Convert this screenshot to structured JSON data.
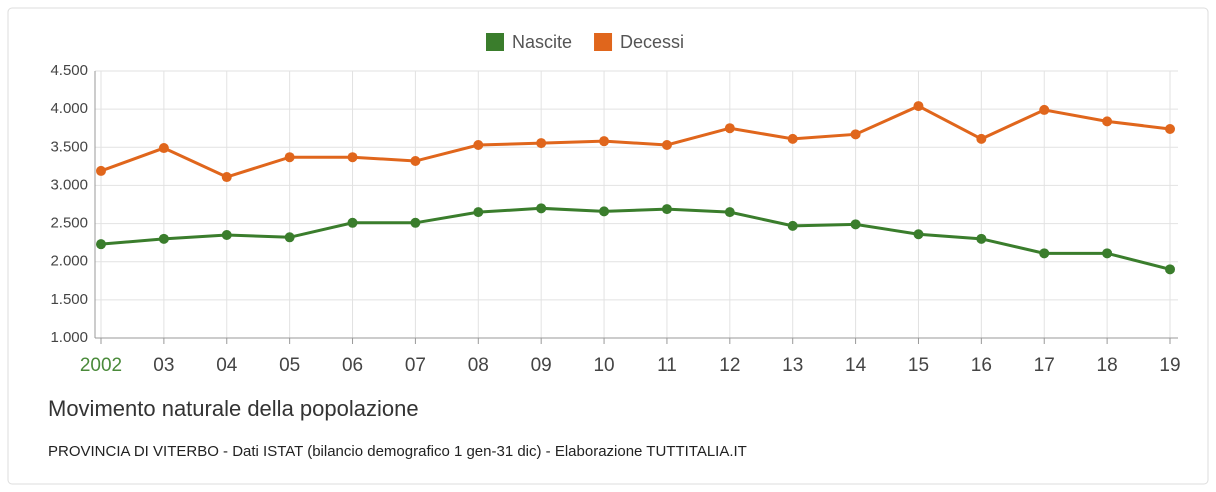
{
  "chart_data": {
    "type": "line",
    "title": "Movimento naturale della popolazione",
    "subtitle": "PROVINCIA DI VITERBO - Dati ISTAT (bilancio demografico 1 gen-31 dic) - Elaborazione TUTTITALIA.IT",
    "categories": [
      "2002",
      "03",
      "04",
      "05",
      "06",
      "07",
      "08",
      "09",
      "10",
      "11",
      "12",
      "13",
      "14",
      "15",
      "16",
      "17",
      "18",
      "19"
    ],
    "series": [
      {
        "name": "Nascite",
        "color": "#3a7d2c",
        "values": [
          2230,
          2300,
          2350,
          2320,
          2510,
          2510,
          2650,
          2700,
          2660,
          2690,
          2650,
          2470,
          2490,
          2360,
          2300,
          2110,
          2110,
          1900
        ]
      },
      {
        "name": "Decessi",
        "color": "#e0661c",
        "values": [
          3190,
          3490,
          3110,
          3370,
          3370,
          3320,
          3530,
          3555,
          3580,
          3530,
          3750,
          3610,
          3670,
          4040,
          3610,
          3990,
          3840,
          3740
        ]
      }
    ],
    "ylim": [
      1000,
      4500
    ],
    "yticks": [
      {
        "value": 1000,
        "label": "1.000"
      },
      {
        "value": 1500,
        "label": "1.500"
      },
      {
        "value": 2000,
        "label": "2.000"
      },
      {
        "value": 2500,
        "label": "2.500"
      },
      {
        "value": 3000,
        "label": "3.000"
      },
      {
        "value": 3500,
        "label": "3.500"
      },
      {
        "value": 4000,
        "label": "4.000"
      },
      {
        "value": 4500,
        "label": "4.500"
      }
    ],
    "grid": true,
    "legend": "top"
  }
}
